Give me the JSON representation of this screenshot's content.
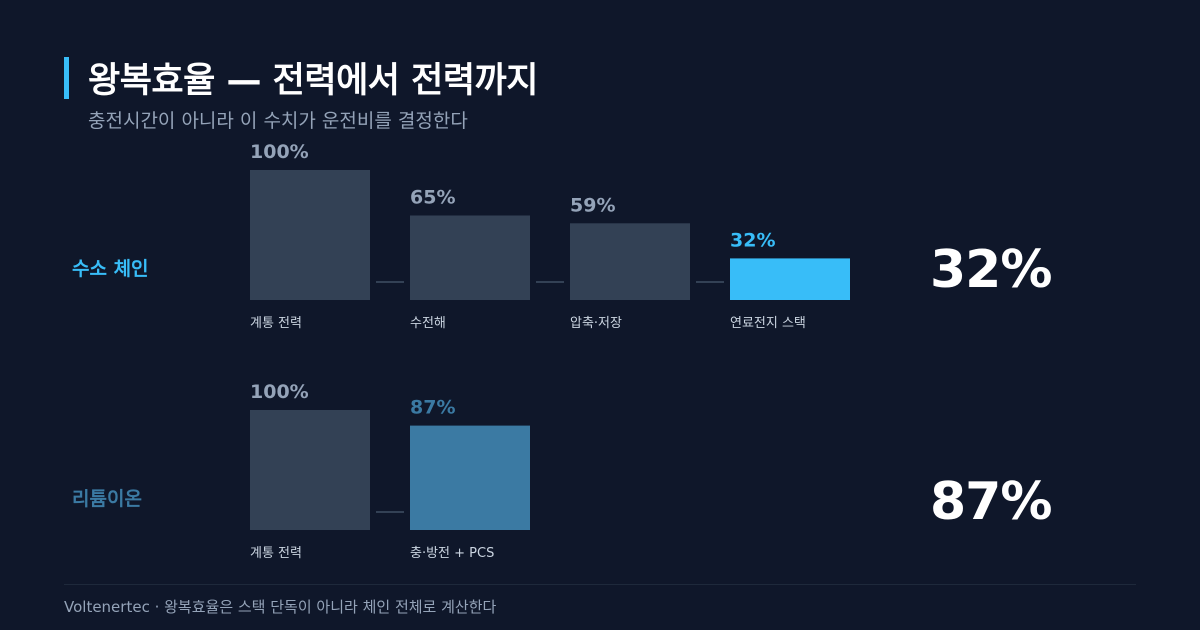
{
  "header": {
    "title": "왕복효율 — 전력에서 전력까지",
    "subtitle": "충전시간이 아니라 이 수치가 운전비를 결정한다"
  },
  "colors": {
    "neutral_bar": "#334155",
    "hydrogen_accent": "#38bdf8",
    "battery_accent": "#3b7aa3",
    "value_label": "#94a3b8",
    "stage_label": "#cbd5e1",
    "connector": "#334155"
  },
  "chart_data": [
    {
      "type": "bar",
      "series_label": "수소 체인",
      "categories": [
        "계통 전력",
        "수전해",
        "압축·저장",
        "연료전지 스택"
      ],
      "values": [
        100,
        65,
        59,
        32
      ],
      "value_labels": [
        "100%",
        "65%",
        "59%",
        "32%"
      ],
      "highlight_index": 3,
      "accent": "#38bdf8",
      "total_label": "32%",
      "ylim": [
        0,
        100
      ]
    },
    {
      "type": "bar",
      "series_label": "리튬이온",
      "categories": [
        "계통 전력",
        "충·방전 + PCS"
      ],
      "values": [
        100,
        87
      ],
      "value_labels": [
        "100%",
        "87%"
      ],
      "highlight_index": 1,
      "accent": "#3b7aa3",
      "total_label": "87%",
      "ylim": [
        0,
        100
      ]
    }
  ],
  "footer": {
    "text": "Voltenertec · 왕복효율은 스택 단독이 아니라 체인 전체로 계산한다"
  }
}
